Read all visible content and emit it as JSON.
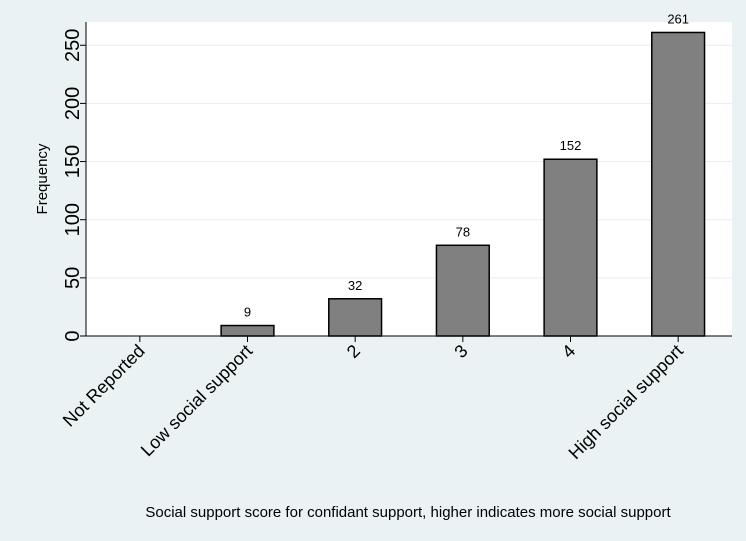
{
  "chart_data": {
    "type": "bar",
    "categories": [
      "Not Reported",
      "Low social support",
      "2",
      "3",
      "4",
      "High social support"
    ],
    "values": [
      0,
      9,
      32,
      78,
      152,
      261
    ],
    "data_labels": [
      "",
      "9",
      "32",
      "78",
      "152",
      "261"
    ],
    "xlabel": "Social support score for confidant support, higher indicates more social support",
    "ylabel": "Frequency",
    "ylim": [
      0,
      270
    ],
    "yticks": [
      0,
      50,
      100,
      150,
      200,
      250
    ],
    "grid": true,
    "colors": {
      "background": "#eaf2f3",
      "plot_area": "#ffffff",
      "bar_fill": "#808080",
      "bar_stroke": "#000000",
      "grid": "#e6eef0"
    }
  }
}
